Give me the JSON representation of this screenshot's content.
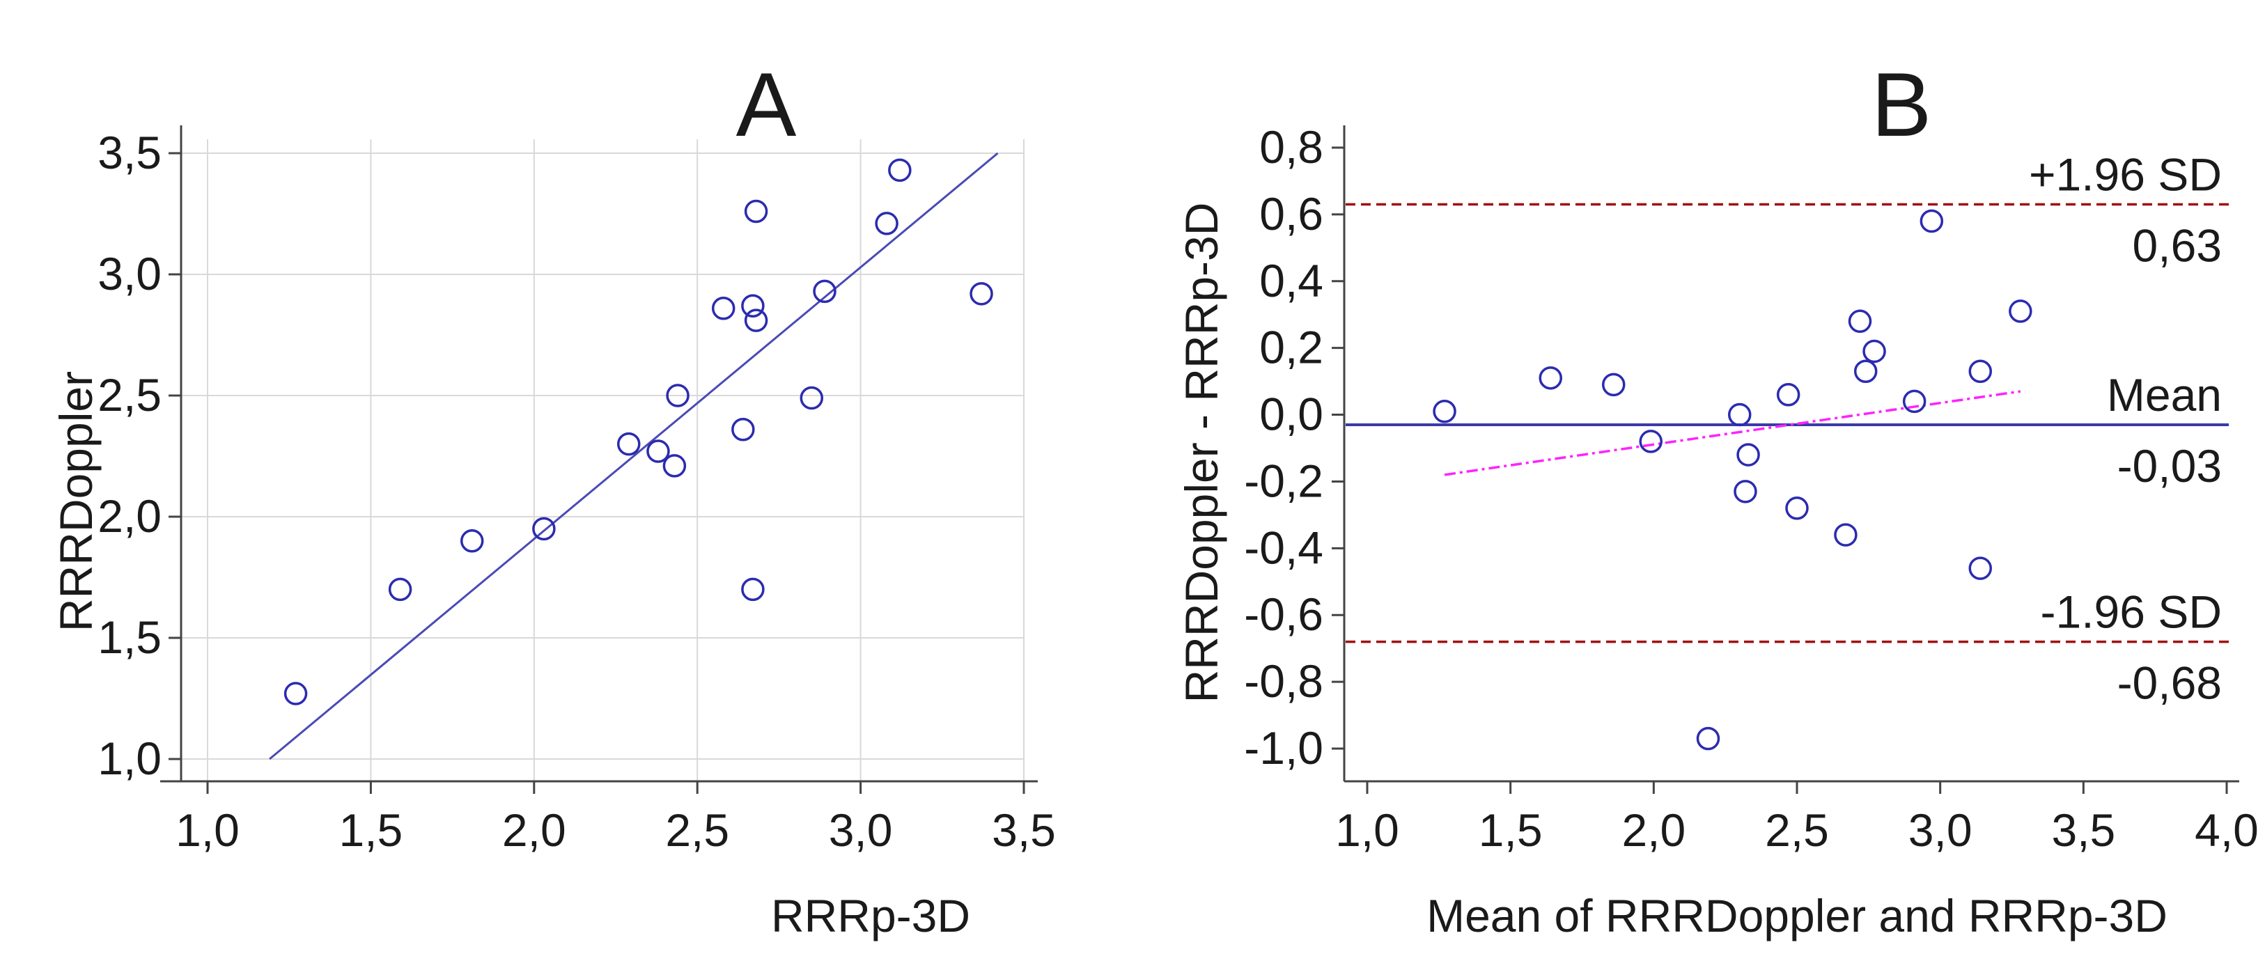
{
  "chart_data": [
    {
      "panel_label": "A",
      "type": "scatter",
      "xlabel": "RRRp-3D",
      "ylabel": "RRRDoppler",
      "xlim": [
        1.0,
        3.5
      ],
      "ylim": [
        1.0,
        3.5
      ],
      "xticks": [
        "1,0",
        "1,5",
        "2,0",
        "2,5",
        "3,0",
        "3,5"
      ],
      "yticks": [
        "1,0",
        "1,5",
        "2,0",
        "2,5",
        "3,0",
        "3,5"
      ],
      "grid": true,
      "points": [
        {
          "x": 1.27,
          "y": 1.27
        },
        {
          "x": 1.59,
          "y": 1.7
        },
        {
          "x": 1.81,
          "y": 1.9
        },
        {
          "x": 2.03,
          "y": 1.95
        },
        {
          "x": 2.29,
          "y": 2.3
        },
        {
          "x": 2.38,
          "y": 2.27
        },
        {
          "x": 2.43,
          "y": 2.21
        },
        {
          "x": 2.44,
          "y": 2.5
        },
        {
          "x": 2.58,
          "y": 2.86
        },
        {
          "x": 2.64,
          "y": 2.36
        },
        {
          "x": 2.67,
          "y": 2.87
        },
        {
          "x": 2.68,
          "y": 2.81
        },
        {
          "x": 2.68,
          "y": 3.26
        },
        {
          "x": 2.67,
          "y": 1.7
        },
        {
          "x": 2.85,
          "y": 2.49
        },
        {
          "x": 2.89,
          "y": 2.93
        },
        {
          "x": 3.08,
          "y": 3.21
        },
        {
          "x": 3.12,
          "y": 3.43
        },
        {
          "x": 3.37,
          "y": 2.92
        }
      ],
      "fit_line": {
        "x": [
          1.19,
          3.42
        ],
        "y": [
          1.0,
          3.5
        ]
      },
      "colors": {
        "points": "#2b2bb0",
        "fit_line": "#4a4ab5",
        "grid": "#d9d9d9",
        "axis": "#444444"
      }
    },
    {
      "panel_label": "B",
      "type": "scatter",
      "xlabel": "Mean of RRRDoppler and RRRp-3D",
      "ylabel": "RRRDoppler - RRRp-3D",
      "xlim": [
        1.0,
        4.0
      ],
      "ylim": [
        -1.0,
        0.8
      ],
      "xticks": [
        "1,0",
        "1,5",
        "2,0",
        "2,5",
        "3,0",
        "3,5",
        "4,0"
      ],
      "yticks": [
        "-1,0",
        "-0,8",
        "-0,6",
        "-0,4",
        "-0,2",
        "0,0",
        "0,2",
        "0,4",
        "0,6",
        "0,8"
      ],
      "grid": false,
      "points": [
        {
          "x": 1.27,
          "y": 0.01
        },
        {
          "x": 1.64,
          "y": 0.11
        },
        {
          "x": 1.86,
          "y": 0.09
        },
        {
          "x": 1.99,
          "y": -0.08
        },
        {
          "x": 2.19,
          "y": -0.97
        },
        {
          "x": 2.3,
          "y": 0.0
        },
        {
          "x": 2.32,
          "y": -0.23
        },
        {
          "x": 2.33,
          "y": -0.12
        },
        {
          "x": 2.47,
          "y": 0.06
        },
        {
          "x": 2.5,
          "y": -0.28
        },
        {
          "x": 2.67,
          "y": -0.36
        },
        {
          "x": 2.72,
          "y": 0.28
        },
        {
          "x": 2.74,
          "y": 0.13
        },
        {
          "x": 2.77,
          "y": 0.19
        },
        {
          "x": 2.91,
          "y": 0.04
        },
        {
          "x": 2.97,
          "y": 0.58
        },
        {
          "x": 3.14,
          "y": 0.13
        },
        {
          "x": 3.14,
          "y": -0.46
        },
        {
          "x": 3.28,
          "y": 0.31
        }
      ],
      "reference_lines": [
        {
          "name": "+1.96 SD",
          "value": 0.63,
          "value_label": "0,63",
          "style": "dashed",
          "color": "#a01010"
        },
        {
          "name": "Mean",
          "value": -0.03,
          "value_label": "-0,03",
          "style": "solid",
          "color": "#3a3aa8"
        },
        {
          "name": "-1.96 SD",
          "value": -0.68,
          "value_label": "-0,68",
          "style": "dashed",
          "color": "#a01010"
        }
      ],
      "regression_line": {
        "x": [
          1.27,
          3.28
        ],
        "y": [
          -0.18,
          0.07
        ],
        "style": "dash-dot",
        "color": "#ff22ff"
      },
      "colors": {
        "points": "#2b2bb0",
        "axis": "#444444"
      }
    }
  ]
}
